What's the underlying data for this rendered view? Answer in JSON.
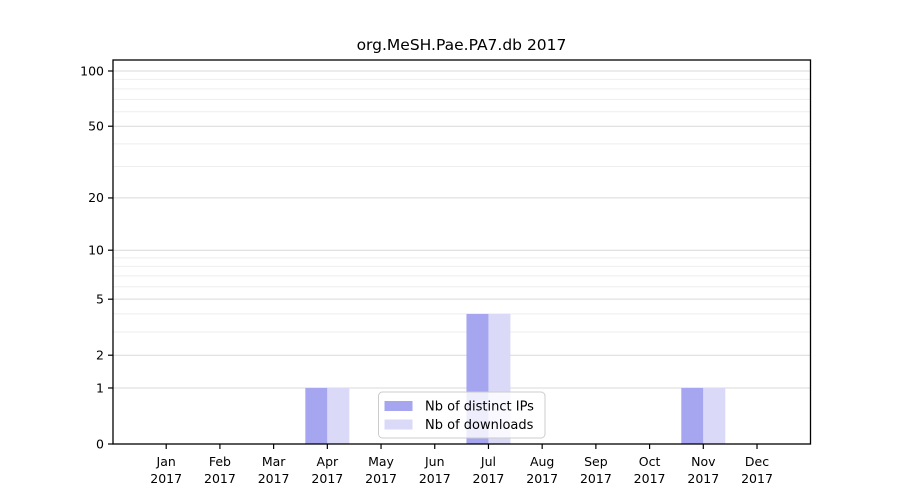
{
  "figure": {
    "title": "org.MeSH.Pae.PA7.db 2017"
  },
  "chart_data": {
    "type": "bar",
    "title": "org.MeSH.Pae.PA7.db 2017",
    "categories": [
      "Jan",
      "Feb",
      "Mar",
      "Apr",
      "May",
      "Jun",
      "Jul",
      "Aug",
      "Sep",
      "Oct",
      "Nov",
      "Dec"
    ],
    "x_tick_year": "2017",
    "series": [
      {
        "name": "Nb of distinct IPs",
        "color": "#a5a5f0",
        "values": [
          0,
          0,
          0,
          1,
          0,
          0,
          4,
          0,
          0,
          0,
          1,
          0
        ]
      },
      {
        "name": "Nb of downloads",
        "color": "#dadaf8",
        "values": [
          0,
          0,
          0,
          1,
          0,
          0,
          4,
          0,
          0,
          0,
          1,
          0
        ]
      }
    ],
    "y_scale": "log10(v+1)",
    "ylim": [
      0,
      115
    ],
    "y_ticks_labeled": [
      0,
      1,
      2,
      5,
      10,
      20,
      50,
      100
    ],
    "y_gridlines_minor": [
      3,
      4,
      6,
      7,
      8,
      9,
      30,
      40,
      60,
      70,
      80,
      90
    ],
    "grid": "horizontal",
    "legend": {
      "position": "bottom-center-inside",
      "items": [
        "Nb of distinct IPs",
        "Nb of downloads"
      ]
    },
    "colors": {
      "axis": "#000000",
      "grid_major": "#d9d9d9",
      "grid_minor": "#eeeeee",
      "legend_border": "#cccccc",
      "legend_bg": "rgba(255,255,255,0.8)"
    }
  }
}
